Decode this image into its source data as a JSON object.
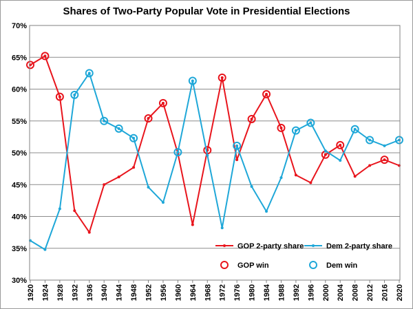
{
  "chart_data": {
    "type": "line",
    "title": "Shares of Two-Party Popular Vote in Presidential Elections",
    "xlabel": "",
    "ylabel": "",
    "ylim": [
      30,
      70
    ],
    "y_ticks": [
      "30%",
      "35%",
      "40%",
      "45%",
      "50%",
      "55%",
      "60%",
      "65%",
      "70%"
    ],
    "y_tick_values": [
      30,
      35,
      40,
      45,
      50,
      55,
      60,
      65,
      70
    ],
    "categories": [
      "1920",
      "1924",
      "1928",
      "1932",
      "1936",
      "1940",
      "1944",
      "1948",
      "1952",
      "1956",
      "1960",
      "1964",
      "1968",
      "1972",
      "1976",
      "1980",
      "1984",
      "1988",
      "1992",
      "1996",
      "2000",
      "2004",
      "2008",
      "2012",
      "2016",
      "2020"
    ],
    "series": [
      {
        "name": "GOP 2-party share",
        "color": "#e8141c",
        "values": [
          63.8,
          65.2,
          58.8,
          40.9,
          37.5,
          45.0,
          46.2,
          47.7,
          55.4,
          57.8,
          49.9,
          38.7,
          50.4,
          61.8,
          48.9,
          55.3,
          59.2,
          53.9,
          46.5,
          45.3,
          49.7,
          51.2,
          46.3,
          48.0,
          48.9,
          48.0
        ],
        "wins": [
          true,
          true,
          true,
          false,
          false,
          false,
          false,
          false,
          true,
          true,
          false,
          false,
          true,
          true,
          false,
          true,
          true,
          true,
          false,
          false,
          true,
          true,
          false,
          false,
          true,
          false
        ]
      },
      {
        "name": "Dem 2-party share",
        "color": "#1ea7d8",
        "values": [
          36.2,
          34.8,
          41.2,
          59.1,
          62.5,
          55.0,
          53.8,
          52.3,
          44.6,
          42.2,
          50.1,
          61.3,
          49.6,
          38.2,
          51.1,
          44.7,
          40.8,
          46.1,
          53.5,
          54.7,
          50.3,
          48.8,
          53.7,
          52.0,
          51.1,
          52.0
        ],
        "wins": [
          false,
          false,
          false,
          true,
          true,
          true,
          true,
          true,
          false,
          false,
          true,
          true,
          false,
          false,
          true,
          false,
          false,
          false,
          true,
          true,
          false,
          false,
          true,
          true,
          false,
          true
        ]
      }
    ],
    "legend": [
      {
        "label": "GOP 2-party share",
        "kind": "line",
        "color": "#e8141c"
      },
      {
        "label": "Dem 2-party share",
        "kind": "line",
        "color": "#1ea7d8"
      },
      {
        "label": "GOP win",
        "kind": "circle",
        "color": "#e8141c"
      },
      {
        "label": "Dem win",
        "kind": "circle",
        "color": "#1ea7d8"
      }
    ],
    "legend_position": "bottom-right",
    "grid": true
  }
}
